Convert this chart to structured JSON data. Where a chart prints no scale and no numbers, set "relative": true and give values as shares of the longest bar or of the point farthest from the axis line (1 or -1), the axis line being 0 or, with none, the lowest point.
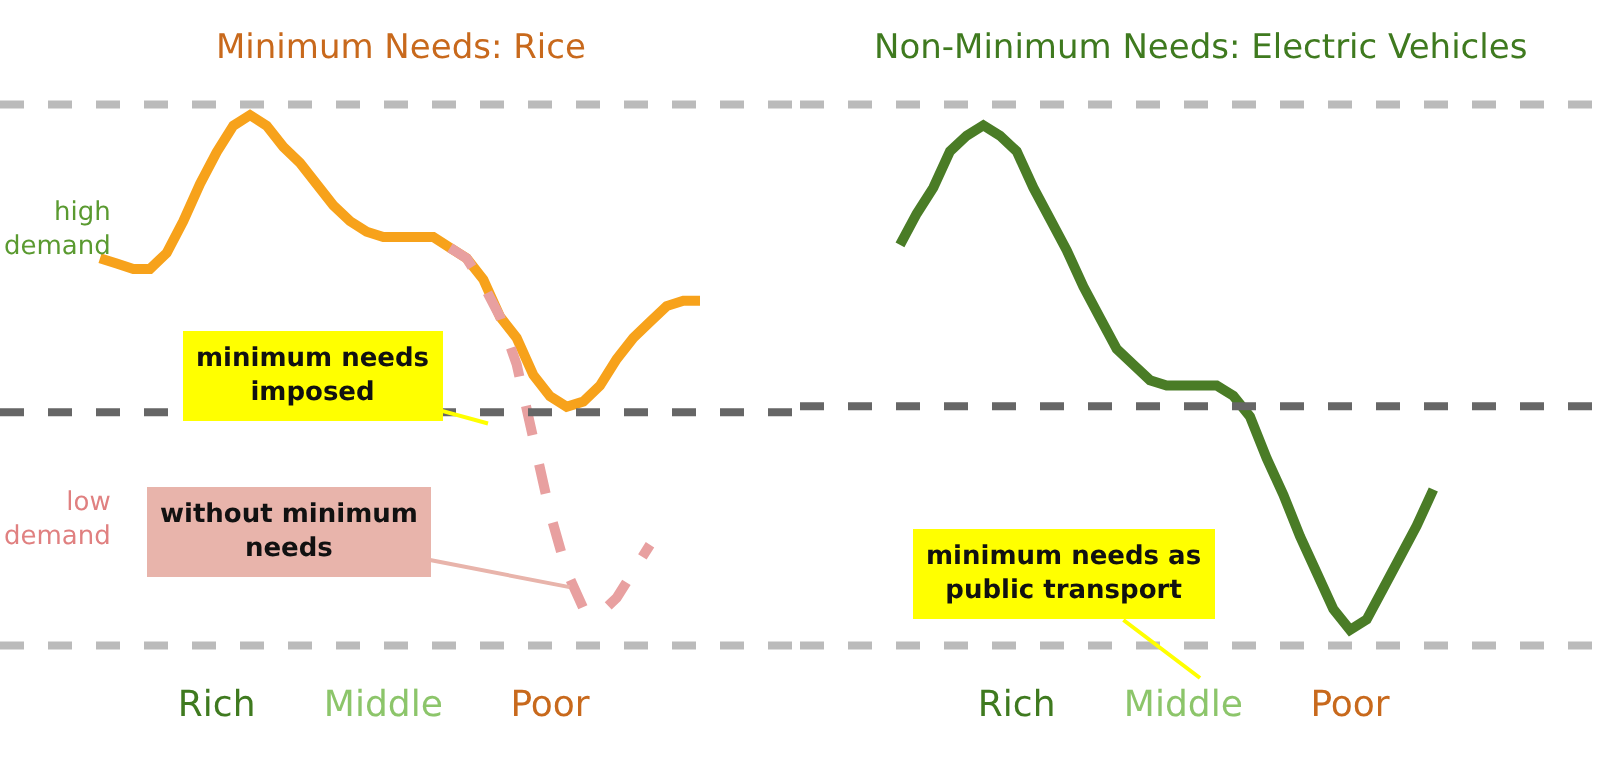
{
  "chart_data": [
    {
      "type": "line",
      "title": "Minimum Needs: Rice",
      "relative": true,
      "categories": [
        null,
        null,
        null,
        null,
        null,
        null,
        null,
        "Rich",
        null,
        null,
        null,
        null,
        null,
        null,
        null,
        null,
        null,
        "Middle",
        null,
        null,
        null,
        null,
        null,
        null,
        null,
        null,
        null,
        "Poor",
        null,
        null,
        null,
        null,
        null,
        null,
        null,
        null,
        null
      ],
      "series": [
        {
          "color": "#f7a21b",
          "line_style": "solid",
          "values": [
            0.73,
            0.72,
            0.71,
            0.71,
            0.74,
            0.8,
            0.87,
            0.93,
            0.98,
            1.0,
            0.98,
            0.94,
            0.91,
            0.87,
            0.83,
            0.8,
            0.78,
            0.77,
            0.77,
            0.77,
            0.77,
            0.75,
            0.73,
            0.69,
            0.62,
            0.58,
            0.51,
            0.47,
            0.45,
            0.46,
            0.49,
            0.54,
            0.58,
            0.61,
            0.64,
            0.65,
            0.65
          ]
        },
        {
          "color": "#e8a0a0",
          "line_style": "dashed",
          "values": [
            null,
            null,
            null,
            null,
            null,
            null,
            null,
            null,
            null,
            null,
            null,
            null,
            null,
            null,
            null,
            null,
            null,
            null,
            null,
            null,
            null,
            0.75,
            0.73,
            0.68,
            0.62,
            0.53,
            0.39,
            0.25,
            0.14,
            0.07,
            0.06,
            0.09,
            0.14,
            0.19,
            null,
            null,
            null
          ]
        }
      ],
      "ref_lines": [
        {
          "axis": "y",
          "value": 1.02,
          "color": "#bbbbbb",
          "line_style": "dashed"
        },
        {
          "axis": "y",
          "value": 0.44,
          "color": "#666666",
          "line_style": "dashed"
        },
        {
          "axis": "y",
          "value": 0,
          "color": "#bbbbbb",
          "line_style": "dashed"
        }
      ],
      "annotations": [
        "high demand",
        "low demand",
        "minimum needs imposed",
        "without minimum needs"
      ]
    },
    {
      "type": "line",
      "title": "Non-Minimum Needs: Electric Vehicles",
      "relative": true,
      "categories": [
        null,
        null,
        null,
        null,
        null,
        null,
        null,
        "Rich",
        null,
        null,
        null,
        null,
        null,
        null,
        null,
        null,
        null,
        "Middle",
        null,
        null,
        null,
        null,
        null,
        null,
        null,
        null,
        null,
        "Poor",
        null,
        null,
        null,
        null,
        null
      ],
      "series": [
        {
          "color": "#4a7c26",
          "line_style": "solid",
          "values": [
            0.77,
            0.83,
            0.88,
            0.95,
            0.98,
            1.0,
            0.98,
            0.95,
            0.88,
            0.82,
            0.76,
            0.69,
            0.63,
            0.57,
            0.54,
            0.51,
            0.5,
            0.5,
            0.5,
            0.5,
            0.48,
            0.44,
            0.36,
            0.29,
            0.21,
            0.14,
            0.07,
            0.03,
            0.05,
            0.11,
            0.17,
            0.23,
            0.3
          ]
        }
      ],
      "ref_lines": [
        {
          "axis": "y",
          "value": 1.04,
          "color": "#bbbbbb",
          "line_style": "dashed"
        },
        {
          "axis": "y",
          "value": 0.46,
          "color": "#666666",
          "line_style": "dashed"
        },
        {
          "axis": "y",
          "value": 0,
          "color": "#bbbbbb",
          "line_style": "dashed"
        }
      ],
      "annotations": [
        "minimum needs as public transport"
      ]
    }
  ]
}
